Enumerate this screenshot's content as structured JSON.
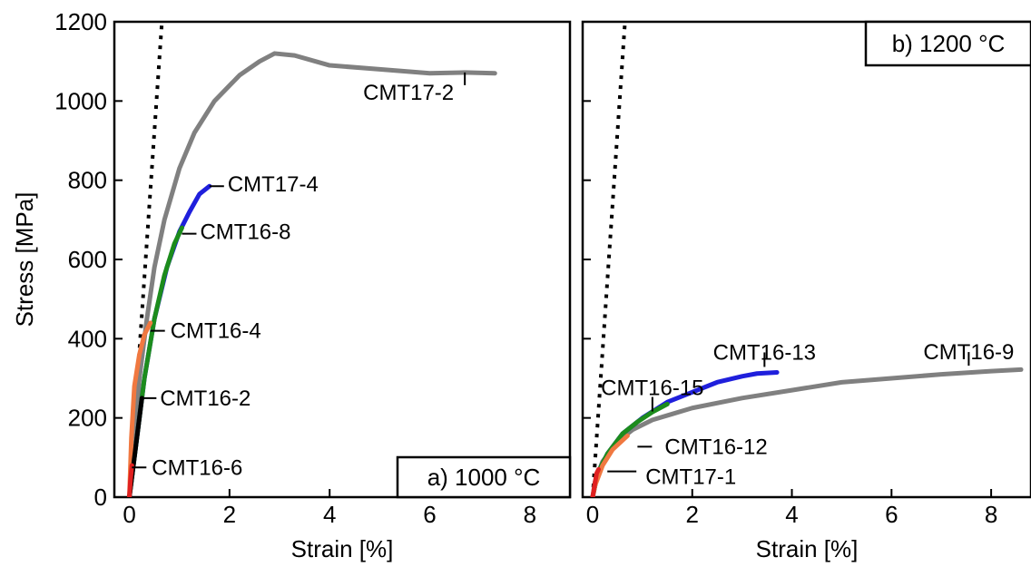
{
  "chart_data": [
    {
      "type": "line",
      "panel_label": "a) 1000 °C",
      "xlabel": "Strain [%]",
      "ylabel": "Stress [MPa]",
      "xlim": [
        -0.3,
        8.8
      ],
      "ylim": [
        0,
        1200
      ],
      "xticks": [
        0,
        2,
        4,
        6,
        8
      ],
      "yticks": [
        0,
        200,
        400,
        600,
        800,
        1000,
        1200
      ],
      "grid": false,
      "reference_line": {
        "style": "dotted",
        "color": "#000000",
        "points": [
          [
            0,
            0
          ],
          [
            0.65,
            1200
          ]
        ]
      },
      "series": [
        {
          "name": "CMT17-2",
          "color": "#808080",
          "points": [
            [
              0,
              0
            ],
            [
              0.1,
              150
            ],
            [
              0.2,
              300
            ],
            [
              0.35,
              450
            ],
            [
              0.5,
              580
            ],
            [
              0.7,
              700
            ],
            [
              1.0,
              830
            ],
            [
              1.3,
              920
            ],
            [
              1.7,
              1000
            ],
            [
              2.2,
              1065
            ],
            [
              2.6,
              1100
            ],
            [
              2.9,
              1120
            ],
            [
              3.3,
              1115
            ],
            [
              4.0,
              1090
            ],
            [
              5.0,
              1080
            ],
            [
              6.0,
              1070
            ],
            [
              6.7,
              1072
            ],
            [
              7.3,
              1070
            ]
          ]
        },
        {
          "name": "CMT17-4",
          "color": "#1f1fdc",
          "points": [
            [
              0,
              0
            ],
            [
              0.15,
              150
            ],
            [
              0.3,
              300
            ],
            [
              0.5,
              450
            ],
            [
              0.75,
              580
            ],
            [
              1.0,
              670
            ],
            [
              1.2,
              720
            ],
            [
              1.4,
              765
            ],
            [
              1.6,
              785
            ]
          ]
        },
        {
          "name": "CMT16-8",
          "color": "#1c8c1c",
          "points": [
            [
              0,
              0
            ],
            [
              0.15,
              150
            ],
            [
              0.3,
              300
            ],
            [
              0.5,
              450
            ],
            [
              0.7,
              560
            ],
            [
              0.9,
              640
            ],
            [
              1.05,
              680
            ]
          ]
        },
        {
          "name": "CMT16-4",
          "color": "#f07840",
          "points": [
            [
              0,
              0
            ],
            [
              0.04,
              150
            ],
            [
              0.1,
              280
            ],
            [
              0.2,
              360
            ],
            [
              0.3,
              410
            ],
            [
              0.42,
              440
            ]
          ]
        },
        {
          "name": "CMT16-2",
          "color": "#000000",
          "points": [
            [
              0,
              0
            ],
            [
              0.1,
              100
            ],
            [
              0.18,
              180
            ],
            [
              0.25,
              250
            ]
          ]
        },
        {
          "name": "CMT16-6",
          "color": "#e02020",
          "points": [
            [
              0,
              0
            ],
            [
              0.02,
              40
            ],
            [
              0.05,
              80
            ]
          ]
        }
      ],
      "annotations": [
        {
          "text": "CMT17-2",
          "x": 6.7,
          "y": 1072
        },
        {
          "text": "CMT17-4",
          "x": 1.6,
          "y": 785
        },
        {
          "text": "CMT16-8",
          "x": 1.05,
          "y": 665
        },
        {
          "text": "CMT16-4",
          "x": 0.42,
          "y": 420
        },
        {
          "text": "CMT16-2",
          "x": 0.25,
          "y": 250
        },
        {
          "text": "CMT16-6",
          "x": 0.05,
          "y": 75
        }
      ]
    },
    {
      "type": "line",
      "panel_label": "b) 1200 °C",
      "xlabel": "Strain [%]",
      "ylabel": "",
      "xlim": [
        -0.2,
        8.8
      ],
      "ylim": [
        0,
        1200
      ],
      "xticks": [
        0,
        2,
        4,
        6,
        8
      ],
      "yticks": [
        0,
        200,
        400,
        600,
        800,
        1000,
        1200
      ],
      "grid": false,
      "reference_line": {
        "style": "dotted",
        "color": "#000000",
        "points": [
          [
            0,
            0
          ],
          [
            0.65,
            1200
          ]
        ]
      },
      "series": [
        {
          "name": "CMT16-9",
          "color": "#808080",
          "points": [
            [
              0,
              0
            ],
            [
              0.05,
              40
            ],
            [
              0.2,
              90
            ],
            [
              0.5,
              140
            ],
            [
              0.8,
              170
            ],
            [
              1.2,
              195
            ],
            [
              1.6,
              210
            ],
            [
              2.0,
              225
            ],
            [
              3.0,
              250
            ],
            [
              4.0,
              270
            ],
            [
              5.0,
              290
            ],
            [
              6.0,
              300
            ],
            [
              7.0,
              310
            ],
            [
              8.0,
              318
            ],
            [
              8.6,
              322
            ]
          ]
        },
        {
          "name": "CMT16-13",
          "color": "#1f1fdc",
          "points": [
            [
              0,
              0
            ],
            [
              0.1,
              60
            ],
            [
              0.3,
              110
            ],
            [
              0.6,
              160
            ],
            [
              1.0,
              200
            ],
            [
              1.5,
              240
            ],
            [
              2.0,
              265
            ],
            [
              2.5,
              290
            ],
            [
              3.0,
              305
            ],
            [
              3.3,
              312
            ],
            [
              3.7,
              315
            ]
          ]
        },
        {
          "name": "CMT16-15",
          "color": "#1c8c1c",
          "points": [
            [
              0,
              0
            ],
            [
              0.1,
              60
            ],
            [
              0.3,
              110
            ],
            [
              0.6,
              160
            ],
            [
              0.9,
              190
            ],
            [
              1.2,
              215
            ],
            [
              1.5,
              235
            ]
          ]
        },
        {
          "name": "CMT16-12",
          "color": "#f07840",
          "points": [
            [
              0,
              0
            ],
            [
              0.05,
              30
            ],
            [
              0.2,
              80
            ],
            [
              0.4,
              120
            ],
            [
              0.7,
              155
            ]
          ]
        },
        {
          "name": "CMT17-1",
          "color": "#e02020",
          "points": [
            [
              0,
              0
            ],
            [
              0.04,
              30
            ],
            [
              0.08,
              60
            ],
            [
              0.12,
              70
            ]
          ]
        }
      ],
      "annotations": [
        {
          "text": "CMT16-9",
          "x": 7.55,
          "y": 325
        },
        {
          "text": "CMT16-13",
          "x": 3.45,
          "y": 315
        },
        {
          "text": "CMT16-15",
          "x": 1.2,
          "y": 230
        },
        {
          "text": "CMT16-12",
          "x": 0.9,
          "y": 155
        },
        {
          "text": "CMT17-1",
          "x": 0.15,
          "y": 65
        }
      ]
    }
  ]
}
